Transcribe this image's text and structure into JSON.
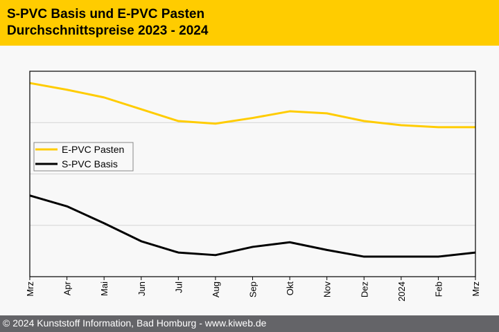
{
  "header": {
    "title_line1": "S-PVC Basis und E-PVC Pasten",
    "title_line2": "Durchschnittspreise 2023 - 2024",
    "background": "#ffcc00"
  },
  "footer": {
    "text": "© 2024 Kunststoff Information, Bad Homburg - www.kiweb.de"
  },
  "chart_data": {
    "type": "line",
    "title": "S-PVC Basis und E-PVC Pasten Durchschnittspreise 2023 - 2024",
    "xlabel": "",
    "ylabel": "",
    "categories": [
      "Mrz",
      "Apr",
      "Mai",
      "Jun",
      "Jul",
      "Aug",
      "Sep",
      "Okt",
      "Nov",
      "Dez",
      "2024",
      "Feb",
      "Mrz"
    ],
    "ylim": [
      0,
      4
    ],
    "y_ticks_labeled": false,
    "grid": true,
    "legend": "left-center",
    "series": [
      {
        "name": "E-PVC Pasten",
        "color": "#ffcc00",
        "values": [
          3.77,
          3.64,
          3.49,
          3.26,
          3.03,
          2.98,
          3.09,
          3.22,
          3.18,
          3.03,
          2.95,
          2.91,
          2.91
        ]
      },
      {
        "name": "S-PVC Basis",
        "color": "#000000",
        "values": [
          1.58,
          1.37,
          1.04,
          0.69,
          0.47,
          0.42,
          0.58,
          0.67,
          0.52,
          0.39,
          0.39,
          0.39,
          0.47
        ]
      }
    ]
  }
}
